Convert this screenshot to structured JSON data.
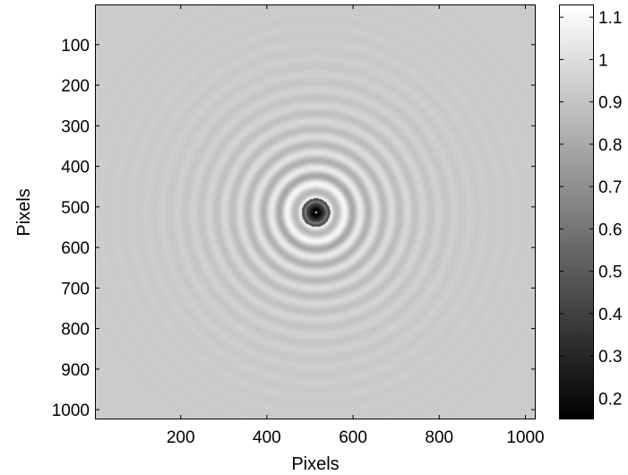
{
  "chart_data": {
    "type": "heatmap",
    "xlabel": "Pixels",
    "ylabel": "Pixels",
    "xlim": [
      1,
      1024
    ],
    "ylim": [
      1024,
      1
    ],
    "x_ticks": [
      200,
      400,
      600,
      800,
      1000
    ],
    "x_tick_labels": [
      "200",
      "400",
      "600",
      "800",
      "1000"
    ],
    "y_ticks": [
      100,
      200,
      300,
      400,
      500,
      600,
      700,
      800,
      900,
      1000
    ],
    "y_tick_labels": [
      "100",
      "200",
      "300",
      "400",
      "500",
      "600",
      "700",
      "800",
      "900",
      "1000"
    ],
    "pattern": {
      "center": [
        513,
        513
      ],
      "background_value": 0.93,
      "center_value": 0.17,
      "peak_value": 1.13,
      "colormap": "gray"
    },
    "colorbar": {
      "range": [
        0.15,
        1.13
      ],
      "ticks": [
        0.2,
        0.3,
        0.4,
        0.5,
        0.6,
        0.7,
        0.8,
        0.9,
        1,
        1.1
      ],
      "tick_labels": [
        "0.2",
        "0.3",
        "0.4",
        "0.5",
        "0.6",
        "0.7",
        "0.8",
        "0.9",
        "1",
        "1.1"
      ]
    }
  }
}
